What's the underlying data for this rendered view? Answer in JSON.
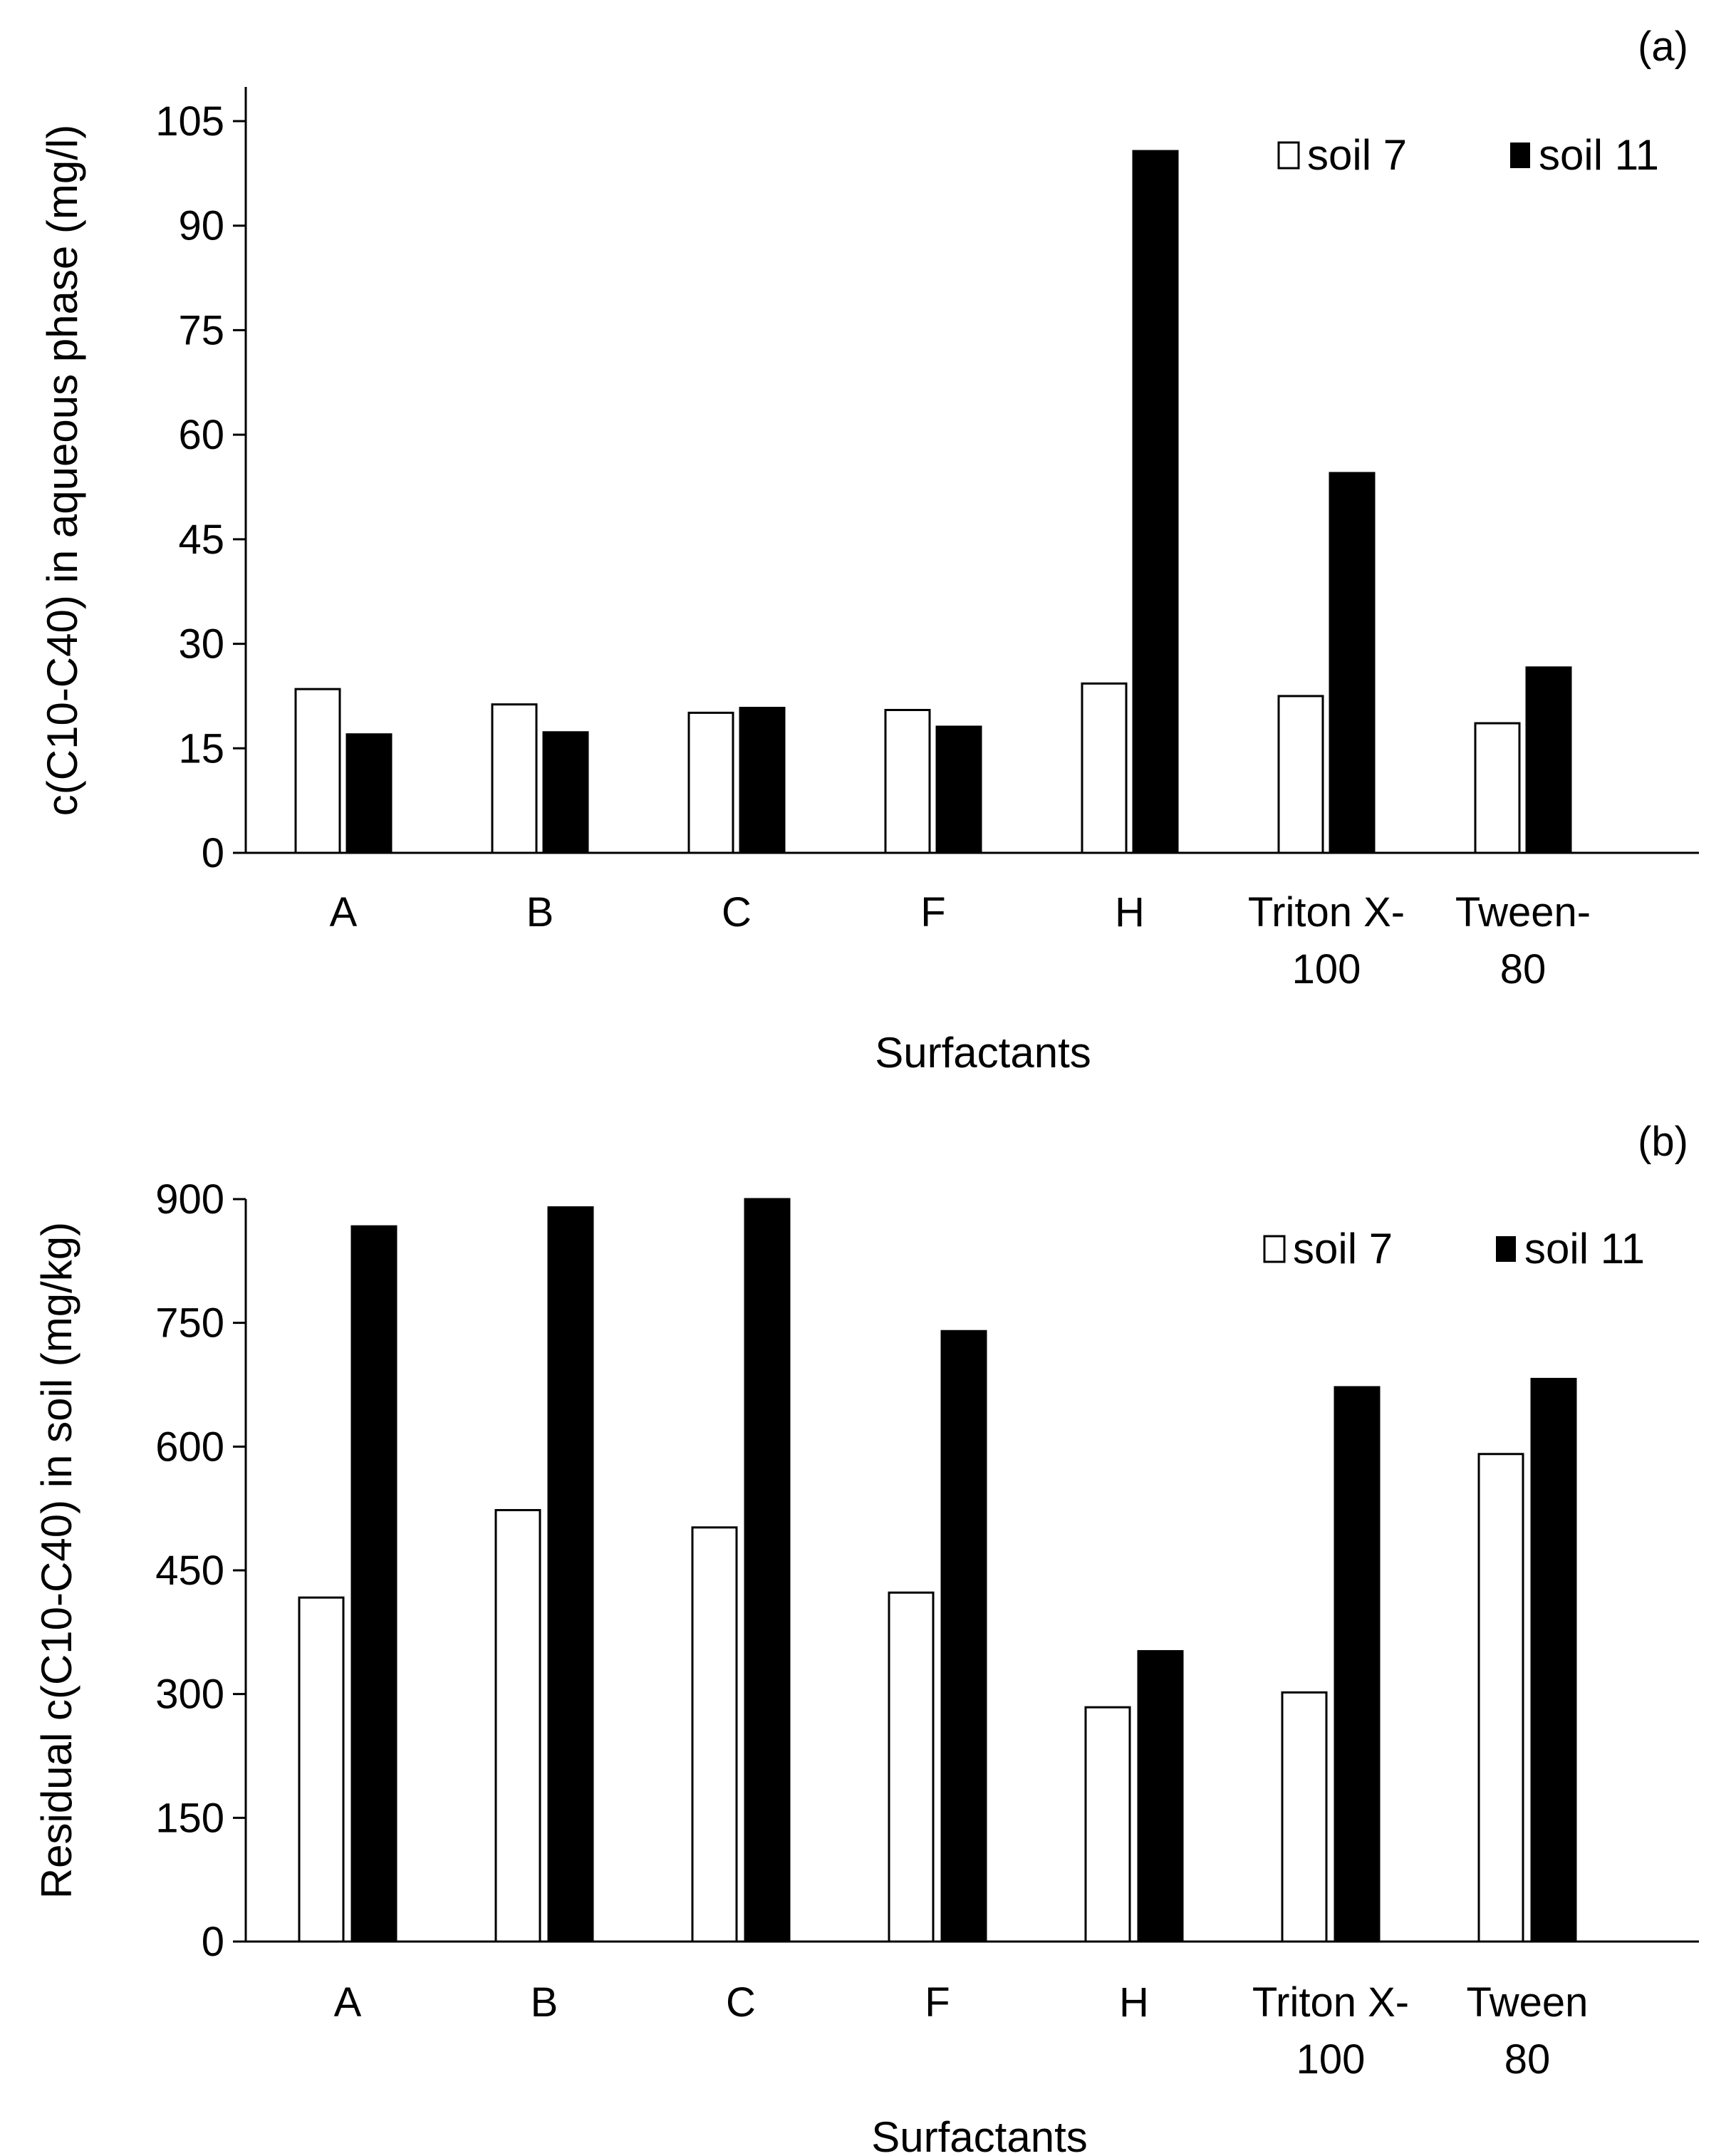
{
  "chart_data": [
    {
      "type": "bar",
      "panel_label": "(a)",
      "categories": [
        [
          "A"
        ],
        [
          "B"
        ],
        [
          "C"
        ],
        [
          "F"
        ],
        [
          "H"
        ],
        [
          "Triton X-",
          "100"
        ],
        [
          "Tween-",
          "80"
        ]
      ],
      "series": [
        {
          "name": "soil 7",
          "color": "#ffffff",
          "values": [
            23.5,
            21.3,
            20.1,
            20.5,
            24.3,
            22.5,
            18.6
          ]
        },
        {
          "name": "soil 11",
          "color": "#000000",
          "values": [
            17.0,
            17.3,
            20.8,
            18.1,
            100.7,
            54.5,
            26.6
          ]
        }
      ],
      "ylabel": "c(C10-C40) in aqueous phase (mg/l)",
      "xlabel": "Surfactants",
      "ylim": [
        0,
        105
      ],
      "yticks": [
        "0",
        "15",
        "30",
        "45",
        "60",
        "75",
        "90",
        "105"
      ],
      "legend_position": "top-right"
    },
    {
      "type": "bar",
      "panel_label": "(b)",
      "categories": [
        [
          "A"
        ],
        [
          "B"
        ],
        [
          "C"
        ],
        [
          "F"
        ],
        [
          "H"
        ],
        [
          "Triton X-",
          "100"
        ],
        [
          "Tween",
          "80"
        ]
      ],
      "series": [
        {
          "name": "soil 7",
          "color": "#ffffff",
          "values": [
            417,
            523,
            502,
            423,
            284,
            302,
            591
          ]
        },
        {
          "name": "soil 11",
          "color": "#000000",
          "values": [
            867,
            890,
            900,
            740,
            352,
            672,
            682
          ]
        }
      ],
      "ylabel": "Residual c(C10-C40) in soil (mg/kg)",
      "xlabel": "Surfactants",
      "ylim": [
        0,
        900
      ],
      "yticks": [
        "0",
        "150",
        "300",
        "450",
        "600",
        "750",
        "900"
      ],
      "legend_position": "top-right"
    }
  ]
}
